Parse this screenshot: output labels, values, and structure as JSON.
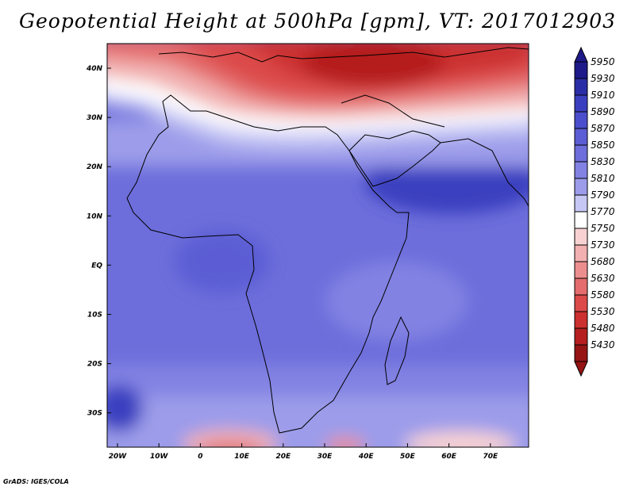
{
  "title": "Geopotential Height at 500hPa [gpm], VT: 2017012903",
  "credit": "GrADS: IGES/COLA",
  "map": {
    "lon_ticks": [
      "20W",
      "10W",
      "0",
      "10E",
      "20E",
      "30E",
      "40E",
      "50E",
      "60E",
      "70E"
    ],
    "lat_ticks": [
      "40N",
      "30N",
      "20N",
      "10N",
      "EQ",
      "10S",
      "20S",
      "30S"
    ],
    "lon_range": [
      -22,
      80
    ],
    "lat_range": [
      -37,
      45
    ]
  },
  "colorbar": {
    "levels": [
      "5950",
      "5930",
      "5910",
      "5890",
      "5870",
      "5850",
      "5830",
      "5810",
      "5790",
      "5770",
      "5750",
      "5730",
      "5680",
      "5630",
      "5580",
      "5530",
      "5480",
      "5430"
    ],
    "colors": [
      "#1e1a8a",
      "#2a2ea6",
      "#3a3fc0",
      "#4a4ecc",
      "#5b5dd4",
      "#6d6edb",
      "#8282e3",
      "#9c9cea",
      "#c7c7f5",
      "#ffffff",
      "#f8d2d2",
      "#f2b0b0",
      "#ec8e8e",
      "#e46c6c",
      "#dc4a4a",
      "#cc3030",
      "#b51f1f",
      "#961414"
    ]
  }
}
